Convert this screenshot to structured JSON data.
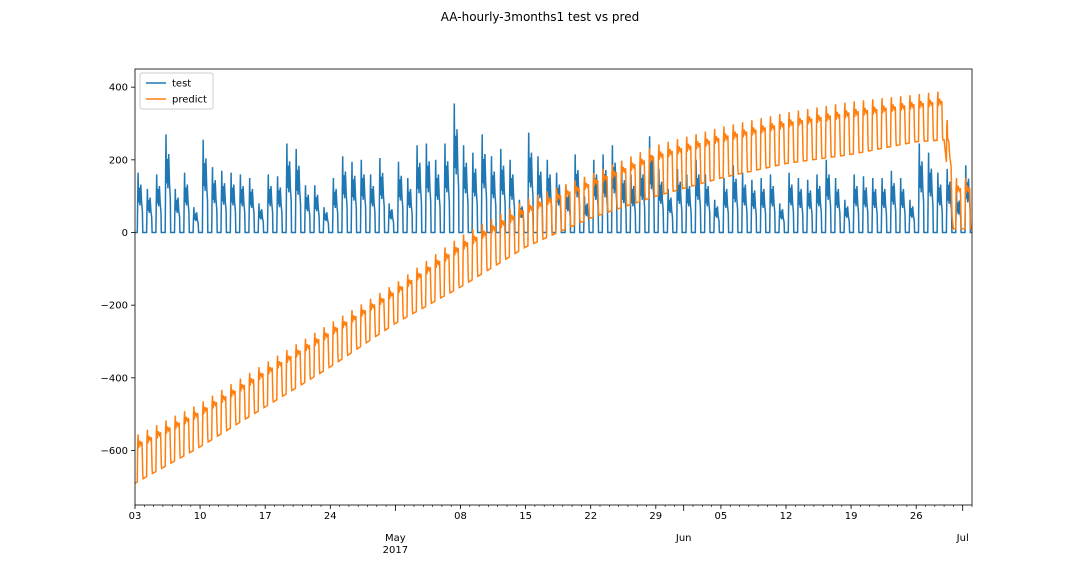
{
  "chart_data": {
    "type": "line",
    "title": "AA-hourly-3months1 test vs pred",
    "xlabel": "",
    "ylabel": "",
    "x_axis": {
      "type": "date",
      "range": [
        "2017-04-03",
        "2017-07-02"
      ],
      "major_ticks": [
        {
          "date": "2017-04-03",
          "label": "03"
        },
        {
          "date": "2017-04-10",
          "label": "10"
        },
        {
          "date": "2017-04-17",
          "label": "17"
        },
        {
          "date": "2017-04-24",
          "label": "24"
        },
        {
          "date": "2017-05-01",
          "label": "May\n2017"
        },
        {
          "date": "2017-05-08",
          "label": "08"
        },
        {
          "date": "2017-05-15",
          "label": "15"
        },
        {
          "date": "2017-05-22",
          "label": "22"
        },
        {
          "date": "2017-05-29",
          "label": "29"
        },
        {
          "date": "2017-06-01",
          "label": "Jun"
        },
        {
          "date": "2017-06-05",
          "label": "05"
        },
        {
          "date": "2017-06-12",
          "label": "12"
        },
        {
          "date": "2017-06-19",
          "label": "19"
        },
        {
          "date": "2017-06-26",
          "label": "26"
        },
        {
          "date": "2017-07-01",
          "label": "Jul"
        }
      ]
    },
    "y_axis": {
      "range": [
        -750,
        450
      ],
      "ticks": [
        400,
        200,
        0,
        -200,
        -400,
        -600
      ],
      "tick_labels": [
        "400",
        "200",
        "0",
        "−200",
        "−400",
        "−600"
      ]
    },
    "grid": false,
    "legend": {
      "placement": "top-left",
      "entries": [
        "test",
        "predict"
      ]
    },
    "series": [
      {
        "name": "test",
        "color": "#1f77b4",
        "pattern": "daily cycle: 0 at night, ~80–170 during day, occasional spikes",
        "daily_peaks": [
          {
            "date": "2017-04-03",
            "peak": 165
          },
          {
            "date": "2017-04-04",
            "peak": 120
          },
          {
            "date": "2017-04-05",
            "peak": 160
          },
          {
            "date": "2017-04-06",
            "peak": 270
          },
          {
            "date": "2017-04-07",
            "peak": 120
          },
          {
            "date": "2017-04-08",
            "peak": 165
          },
          {
            "date": "2017-04-09",
            "peak": 70
          },
          {
            "date": "2017-04-10",
            "peak": 255
          },
          {
            "date": "2017-04-11",
            "peak": 180
          },
          {
            "date": "2017-04-12",
            "peak": 170
          },
          {
            "date": "2017-04-13",
            "peak": 165
          },
          {
            "date": "2017-04-14",
            "peak": 160
          },
          {
            "date": "2017-04-15",
            "peak": 150
          },
          {
            "date": "2017-04-16",
            "peak": 80
          },
          {
            "date": "2017-04-17",
            "peak": 160
          },
          {
            "date": "2017-04-18",
            "peak": 155
          },
          {
            "date": "2017-04-19",
            "peak": 245
          },
          {
            "date": "2017-04-20",
            "peak": 230
          },
          {
            "date": "2017-04-21",
            "peak": 130
          },
          {
            "date": "2017-04-22",
            "peak": 130
          },
          {
            "date": "2017-04-23",
            "peak": 70
          },
          {
            "date": "2017-04-24",
            "peak": 150
          },
          {
            "date": "2017-04-25",
            "peak": 210
          },
          {
            "date": "2017-04-26",
            "peak": 195
          },
          {
            "date": "2017-04-27",
            "peak": 200
          },
          {
            "date": "2017-04-28",
            "peak": 160
          },
          {
            "date": "2017-04-29",
            "peak": 205
          },
          {
            "date": "2017-04-30",
            "peak": 80
          },
          {
            "date": "2017-05-01",
            "peak": 195
          },
          {
            "date": "2017-05-02",
            "peak": 150
          },
          {
            "date": "2017-05-03",
            "peak": 240
          },
          {
            "date": "2017-05-04",
            "peak": 245
          },
          {
            "date": "2017-05-05",
            "peak": 200
          },
          {
            "date": "2017-05-06",
            "peak": 245
          },
          {
            "date": "2017-05-07",
            "peak": 355
          },
          {
            "date": "2017-05-08",
            "peak": 240
          },
          {
            "date": "2017-05-09",
            "peak": 220
          },
          {
            "date": "2017-05-10",
            "peak": 270
          },
          {
            "date": "2017-05-11",
            "peak": 210
          },
          {
            "date": "2017-05-12",
            "peak": 230
          },
          {
            "date": "2017-05-13",
            "peak": 200
          },
          {
            "date": "2017-05-14",
            "peak": 90
          },
          {
            "date": "2017-05-15",
            "peak": 275
          },
          {
            "date": "2017-05-16",
            "peak": 210
          },
          {
            "date": "2017-05-17",
            "peak": 200
          },
          {
            "date": "2017-05-18",
            "peak": 165
          },
          {
            "date": "2017-05-19",
            "peak": 130
          },
          {
            "date": "2017-05-20",
            "peak": 215
          },
          {
            "date": "2017-05-21",
            "peak": 100
          },
          {
            "date": "2017-05-22",
            "peak": 200
          },
          {
            "date": "2017-05-23",
            "peak": 215
          },
          {
            "date": "2017-05-24",
            "peak": 240
          },
          {
            "date": "2017-05-25",
            "peak": 180
          },
          {
            "date": "2017-05-26",
            "peak": 160
          },
          {
            "date": "2017-05-27",
            "peak": 200
          },
          {
            "date": "2017-05-28",
            "peak": 265
          },
          {
            "date": "2017-05-29",
            "peak": 175
          },
          {
            "date": "2017-05-30",
            "peak": 120
          },
          {
            "date": "2017-05-31",
            "peak": 175
          },
          {
            "date": "2017-06-01",
            "peak": 160
          },
          {
            "date": "2017-06-02",
            "peak": 200
          },
          {
            "date": "2017-06-03",
            "peak": 160
          },
          {
            "date": "2017-06-04",
            "peak": 90
          },
          {
            "date": "2017-06-05",
            "peak": 150
          },
          {
            "date": "2017-06-06",
            "peak": 185
          },
          {
            "date": "2017-06-07",
            "peak": 165
          },
          {
            "date": "2017-06-08",
            "peak": 145
          },
          {
            "date": "2017-06-09",
            "peak": 150
          },
          {
            "date": "2017-06-10",
            "peak": 160
          },
          {
            "date": "2017-06-11",
            "peak": 80
          },
          {
            "date": "2017-06-12",
            "peak": 165
          },
          {
            "date": "2017-06-13",
            "peak": 150
          },
          {
            "date": "2017-06-14",
            "peak": 145
          },
          {
            "date": "2017-06-15",
            "peak": 160
          },
          {
            "date": "2017-06-16",
            "peak": 200
          },
          {
            "date": "2017-06-17",
            "peak": 150
          },
          {
            "date": "2017-06-18",
            "peak": 90
          },
          {
            "date": "2017-06-19",
            "peak": 160
          },
          {
            "date": "2017-06-20",
            "peak": 155
          },
          {
            "date": "2017-06-21",
            "peak": 150
          },
          {
            "date": "2017-06-22",
            "peak": 150
          },
          {
            "date": "2017-06-23",
            "peak": 170
          },
          {
            "date": "2017-06-24",
            "peak": 150
          },
          {
            "date": "2017-06-25",
            "peak": 90
          },
          {
            "date": "2017-06-26",
            "peak": 245
          },
          {
            "date": "2017-06-27",
            "peak": 220
          },
          {
            "date": "2017-06-28",
            "peak": 165
          },
          {
            "date": "2017-06-29",
            "peak": 175
          },
          {
            "date": "2017-06-30",
            "peak": 110
          },
          {
            "date": "2017-07-01",
            "peak": 185
          },
          {
            "date": "2017-07-02",
            "peak": 100
          }
        ]
      },
      {
        "name": "predict",
        "color": "#ff7f0e",
        "pattern": "daily cycle on a rising trend, then drops to near 0 at end of June",
        "trend_points": [
          {
            "date": "2017-04-03",
            "low": -690,
            "high": -560
          },
          {
            "date": "2017-04-10",
            "low": -590,
            "high": -470
          },
          {
            "date": "2017-04-17",
            "low": -480,
            "high": -360
          },
          {
            "date": "2017-04-24",
            "low": -370,
            "high": -250
          },
          {
            "date": "2017-05-01",
            "low": -250,
            "high": -140
          },
          {
            "date": "2017-05-08",
            "low": -150,
            "high": -10
          },
          {
            "date": "2017-05-15",
            "low": -40,
            "high": 90
          },
          {
            "date": "2017-05-22",
            "low": 40,
            "high": 160
          },
          {
            "date": "2017-05-29",
            "low": 100,
            "high": 240
          },
          {
            "date": "2017-06-05",
            "low": 150,
            "high": 290
          },
          {
            "date": "2017-06-12",
            "low": 190,
            "high": 330
          },
          {
            "date": "2017-06-19",
            "low": 215,
            "high": 360
          },
          {
            "date": "2017-06-26",
            "low": 250,
            "high": 380
          },
          {
            "date": "2017-06-29",
            "low": 255,
            "high": 390
          },
          {
            "date": "2017-06-30",
            "low": 10,
            "high": 150
          },
          {
            "date": "2017-07-02",
            "low": 10,
            "high": 150
          }
        ]
      }
    ]
  }
}
